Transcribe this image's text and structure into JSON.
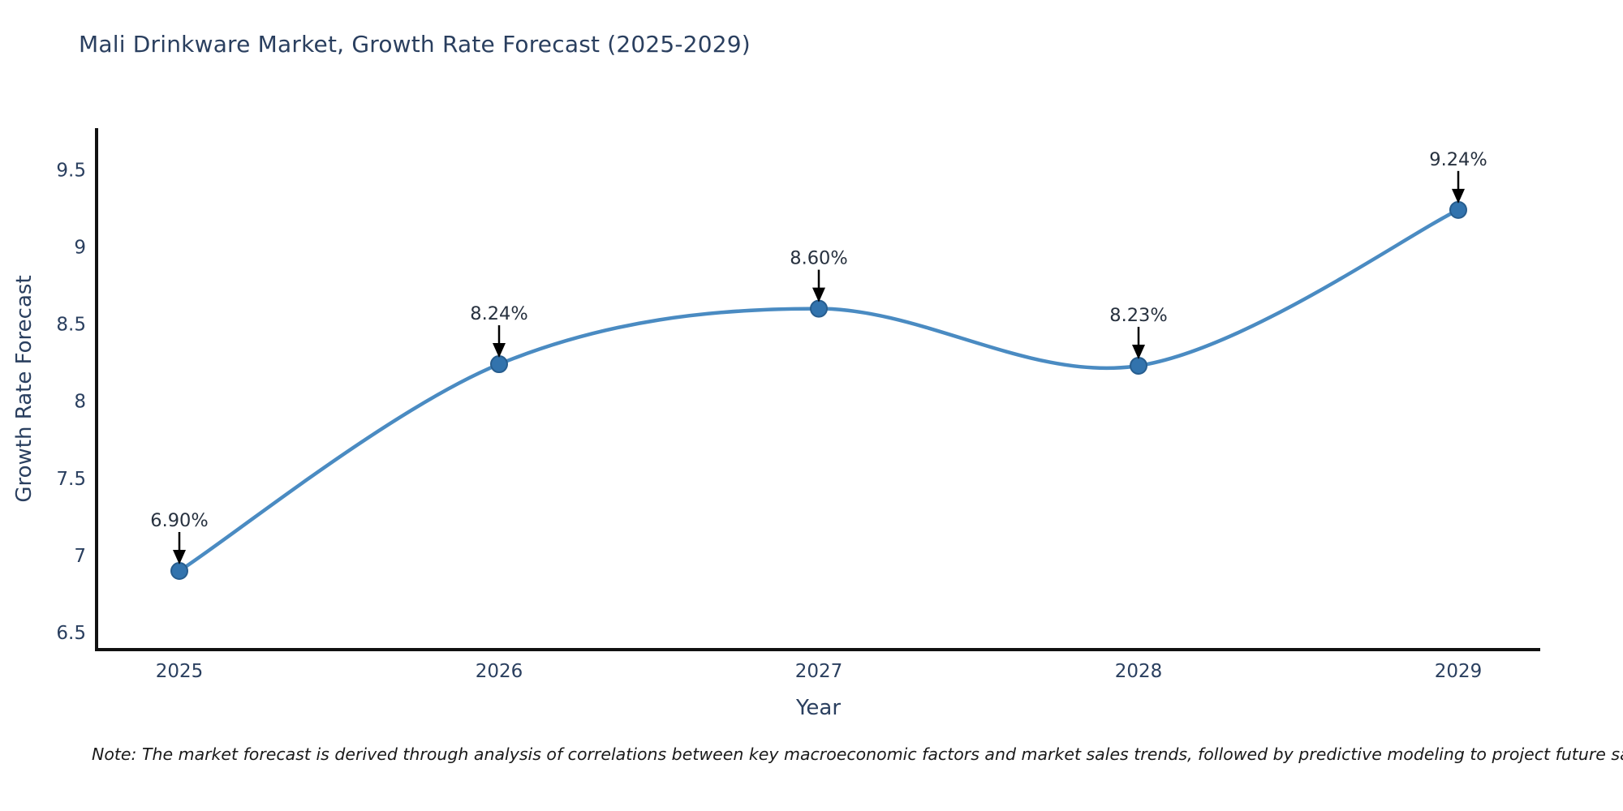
{
  "figure": {
    "title": "Mali Drinkware Market, Growth Rate Forecast (2025-2029)",
    "note": "Note: The market forecast is derived through analysis of correlations between key macroeconomic factors and market sales trends, followed by predictive modeling to project future sales."
  },
  "chart_data": {
    "type": "line",
    "title": "Mali Drinkware Market, Growth Rate Forecast (2025-2029)",
    "xlabel": "Year",
    "ylabel": "Growth Rate Forecast",
    "categories": [
      "2025",
      "2026",
      "2027",
      "2028",
      "2029"
    ],
    "values": [
      6.9,
      8.24,
      8.6,
      8.23,
      9.24
    ],
    "point_labels": [
      "6.90%",
      "8.24%",
      "8.60%",
      "8.23%",
      "9.24%"
    ],
    "yticks": [
      6.5,
      7,
      7.5,
      8,
      8.5,
      9,
      9.5
    ],
    "ylim": [
      6.39,
      9.77
    ],
    "grid": false,
    "legend": "none",
    "line_shape": "spline",
    "annotation_style": "value label above black down-arrow pointing at each marker",
    "colors": {
      "line": "#4a8bc2",
      "marker_fill": "#3273ad",
      "marker_edge": "#275d8e",
      "axis_line": "#111111",
      "tick_text": "#2a3f5f",
      "title_text": "#2a3f5f",
      "annotation_text": "#27313f",
      "arrow": "#000000",
      "note_text": "#1a1a1a",
      "background": "#ffffff"
    }
  }
}
